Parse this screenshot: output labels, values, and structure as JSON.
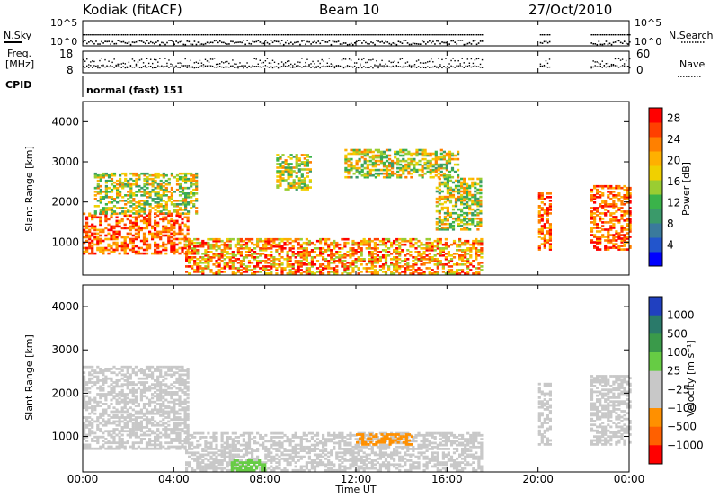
{
  "header": {
    "station": "Kodiak (fitACF)",
    "beam": "Beam 10",
    "date": "27/Oct/2010"
  },
  "status_panels": {
    "nsky_label": "N.Sky",
    "nsky_ticks": [
      "10^5",
      "10^0"
    ],
    "nsearch_label": "N.Search",
    "nsearch_ticks": [
      "10^5",
      "10^0"
    ],
    "freq_label": "Freq.",
    "freq_unit": "[MHz]",
    "freq_ticks": [
      "18",
      "8"
    ],
    "nave_label": "Nave",
    "nave_ticks": [
      "60",
      "0"
    ],
    "cpid_label": "CPID",
    "cpid_value": "normal (fast) 151",
    "gaps_hours": [
      [
        17.55,
        20.0
      ],
      [
        20.55,
        22.3
      ]
    ]
  },
  "chart_data": [
    {
      "type": "heatmap",
      "quantity": "Power",
      "ylabel": "Slant Range [km]",
      "yticks": [
        "1000",
        "2000",
        "3000",
        "4000"
      ],
      "ylim": [
        180,
        4500
      ],
      "xlim": [
        0,
        24
      ],
      "xticks": [
        "00:00",
        "04:00",
        "08:00",
        "12:00",
        "16:00",
        "20:00",
        "00:00"
      ],
      "colorbar": {
        "label": "Power [dB]",
        "ticks": [
          "4",
          "8",
          "12",
          "16",
          "20",
          "24",
          "28"
        ],
        "range": [
          0,
          30
        ],
        "colors": [
          "#0000ff",
          "#2255cc",
          "#3a7a9c",
          "#3a9a6a",
          "#3ab34a",
          "#9acd32",
          "#f0d000",
          "#ffb000",
          "#ff8000",
          "#ff4000",
          "#ff0000"
        ]
      },
      "data_segments": [
        {
          "t": [
            0.0,
            4.6
          ],
          "range": [
            700,
            1700
          ],
          "level": "high"
        },
        {
          "t": [
            0.5,
            5.0
          ],
          "range": [
            1700,
            2700
          ],
          "level": "medium"
        },
        {
          "t": [
            4.5,
            17.5
          ],
          "range": [
            200,
            1100
          ],
          "level": "medium-high"
        },
        {
          "t": [
            8.5,
            10.0
          ],
          "range": [
            2300,
            3200
          ],
          "level": "medium"
        },
        {
          "t": [
            11.5,
            16.5
          ],
          "range": [
            2600,
            3300
          ],
          "level": "medium"
        },
        {
          "t": [
            15.5,
            17.5
          ],
          "range": [
            1300,
            2600
          ],
          "level": "medium"
        },
        {
          "t": [
            20.0,
            20.55
          ],
          "range": [
            800,
            2200
          ],
          "level": "high"
        },
        {
          "t": [
            22.3,
            24.0
          ],
          "range": [
            800,
            2400
          ],
          "level": "high"
        }
      ]
    },
    {
      "type": "heatmap",
      "quantity": "Velocity",
      "ylabel": "Slant Range [km]",
      "yticks": [
        "1000",
        "2000",
        "3000",
        "4000"
      ],
      "ylim": [
        180,
        4500
      ],
      "xlim": [
        0,
        24
      ],
      "xticks": [
        "00:00",
        "04:00",
        "08:00",
        "12:00",
        "16:00",
        "20:00",
        "00:00"
      ],
      "xlabel": "Time UT",
      "colorbar": {
        "label": "Velocity [m s⁻¹]",
        "ticks": [
          "1000",
          "500",
          "100",
          "25",
          "−25",
          "−100",
          "−500",
          "−1000"
        ],
        "colors": [
          "#2040c0",
          "#2a7a6a",
          "#3a9a4a",
          "#66cc44",
          "#c8c8c8",
          "#c8c8c8",
          "#ff9000",
          "#ff6000",
          "#ff0000"
        ]
      },
      "data_segments": [
        {
          "t": [
            0.0,
            4.6
          ],
          "range": [
            700,
            2600
          ],
          "velocity": "low (grey)"
        },
        {
          "t": [
            4.5,
            17.5
          ],
          "range": [
            200,
            1100
          ],
          "velocity": "low (grey)"
        },
        {
          "t": [
            12.0,
            14.5
          ],
          "range": [
            800,
            1050
          ],
          "velocity": "negative (orange)"
        },
        {
          "t": [
            6.5,
            8.0
          ],
          "range": [
            200,
            450
          ],
          "velocity": "positive (green)"
        },
        {
          "t": [
            20.0,
            20.55
          ],
          "range": [
            800,
            2200
          ],
          "velocity": "low (grey)"
        },
        {
          "t": [
            22.3,
            24.0
          ],
          "range": [
            800,
            2400
          ],
          "velocity": "low (grey)"
        }
      ]
    }
  ],
  "colors": {
    "axis": "#000000",
    "background": "#ffffff"
  }
}
